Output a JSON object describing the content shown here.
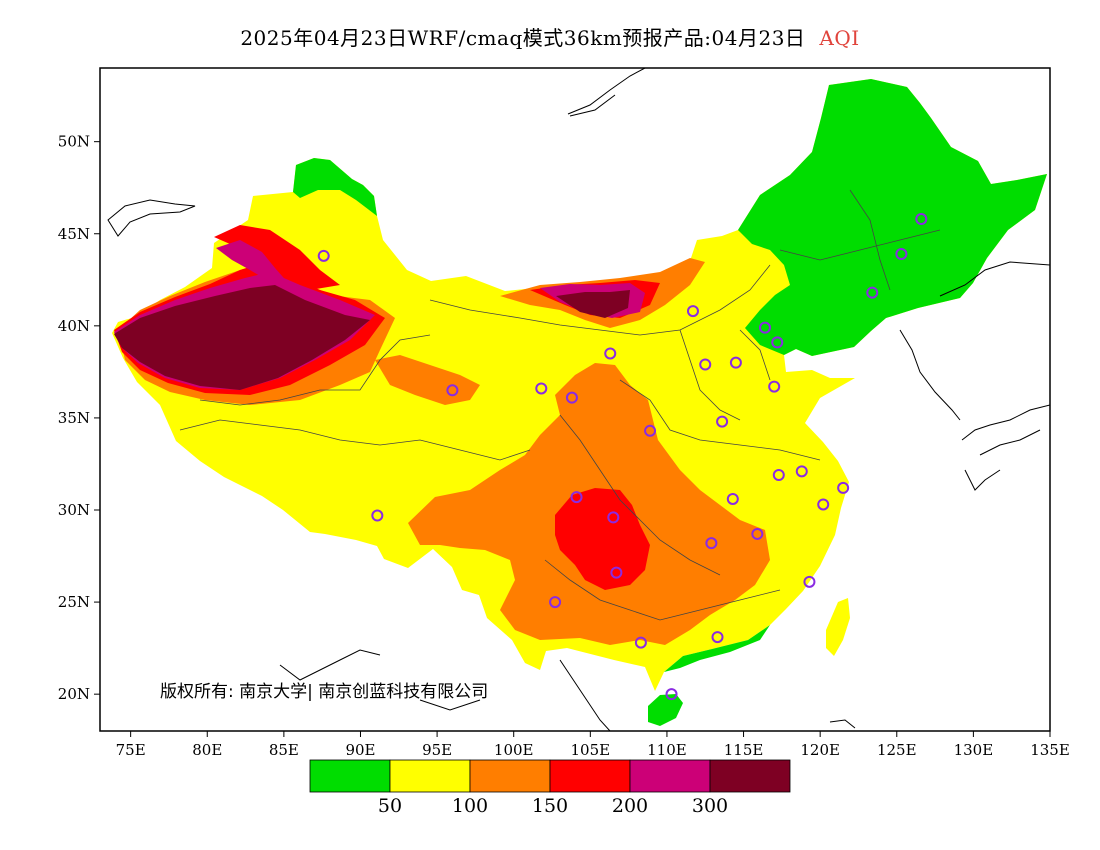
{
  "title": {
    "main": "2025年04月23日WRF/cmaq模式36km预报产品:04月23日",
    "variable": "AQI",
    "variable_color": "#e0443c"
  },
  "copyright": "版权所有: 南京大学| 南京创蓝科技有限公司",
  "axes": {
    "lat_range": [
      18,
      54
    ],
    "lon_range": [
      73,
      135
    ],
    "lat_ticks": [
      {
        "value": 20,
        "label": "20N"
      },
      {
        "value": 25,
        "label": "25N"
      },
      {
        "value": 30,
        "label": "30N"
      },
      {
        "value": 35,
        "label": "35N"
      },
      {
        "value": 40,
        "label": "40N"
      },
      {
        "value": 45,
        "label": "45N"
      },
      {
        "value": 50,
        "label": "50N"
      }
    ],
    "lon_ticks": [
      {
        "value": 75,
        "label": "75E"
      },
      {
        "value": 80,
        "label": "80E"
      },
      {
        "value": 85,
        "label": "85E"
      },
      {
        "value": 90,
        "label": "90E"
      },
      {
        "value": 95,
        "label": "95E"
      },
      {
        "value": 100,
        "label": "100E"
      },
      {
        "value": 105,
        "label": "105E"
      },
      {
        "value": 110,
        "label": "110E"
      },
      {
        "value": 115,
        "label": "115E"
      },
      {
        "value": 120,
        "label": "120E"
      },
      {
        "value": 125,
        "label": "125E"
      },
      {
        "value": 130,
        "label": "130E"
      },
      {
        "value": 135,
        "label": "135E"
      }
    ]
  },
  "legend": {
    "levels": [
      {
        "color": "#00dd00",
        "range": "<50"
      },
      {
        "color": "#ffff00",
        "range": "50-100"
      },
      {
        "color": "#ff7e00",
        "range": "100-150"
      },
      {
        "color": "#ff0000",
        "range": "150-200"
      },
      {
        "color": "#cc0077",
        "range": "200-300"
      },
      {
        "color": "#7e0023",
        "range": ">300"
      }
    ],
    "labels": [
      "50",
      "100",
      "150",
      "200",
      "300"
    ]
  },
  "colors": {
    "good": "#00dd00",
    "moderate": "#ffff00",
    "sensitive": "#ff7e00",
    "unhealthy": "#ff0000",
    "very_unhealthy": "#cc0077",
    "hazardous": "#7e0023",
    "station_marker": "#8a2be2"
  },
  "stations": [
    {
      "lon": 87.6,
      "lat": 43.8
    },
    {
      "lon": 91.1,
      "lat": 29.7
    },
    {
      "lon": 101.8,
      "lat": 36.6
    },
    {
      "lon": 103.8,
      "lat": 36.1
    },
    {
      "lon": 106.3,
      "lat": 38.5
    },
    {
      "lon": 111.7,
      "lat": 40.8
    },
    {
      "lon": 112.5,
      "lat": 37.9
    },
    {
      "lon": 114.5,
      "lat": 38.0
    },
    {
      "lon": 116.4,
      "lat": 39.9
    },
    {
      "lon": 117.2,
      "lat": 39.1
    },
    {
      "lon": 117.0,
      "lat": 36.7
    },
    {
      "lon": 113.6,
      "lat": 34.8
    },
    {
      "lon": 108.9,
      "lat": 34.3
    },
    {
      "lon": 117.3,
      "lat": 31.9
    },
    {
      "lon": 118.8,
      "lat": 32.1
    },
    {
      "lon": 121.5,
      "lat": 31.2
    },
    {
      "lon": 120.2,
      "lat": 30.3
    },
    {
      "lon": 114.3,
      "lat": 30.6
    },
    {
      "lon": 115.9,
      "lat": 28.7
    },
    {
      "lon": 112.9,
      "lat": 28.2
    },
    {
      "lon": 119.3,
      "lat": 26.1
    },
    {
      "lon": 113.3,
      "lat": 23.1
    },
    {
      "lon": 108.3,
      "lat": 22.8
    },
    {
      "lon": 110.3,
      "lat": 20.0
    },
    {
      "lon": 102.7,
      "lat": 25.0
    },
    {
      "lon": 106.7,
      "lat": 26.6
    },
    {
      "lon": 104.1,
      "lat": 30.7
    },
    {
      "lon": 106.5,
      "lat": 29.6
    },
    {
      "lon": 123.4,
      "lat": 41.8
    },
    {
      "lon": 125.3,
      "lat": 43.9
    },
    {
      "lon": 126.6,
      "lat": 45.8
    },
    {
      "lon": 96.0,
      "lat": 36.5
    }
  ]
}
